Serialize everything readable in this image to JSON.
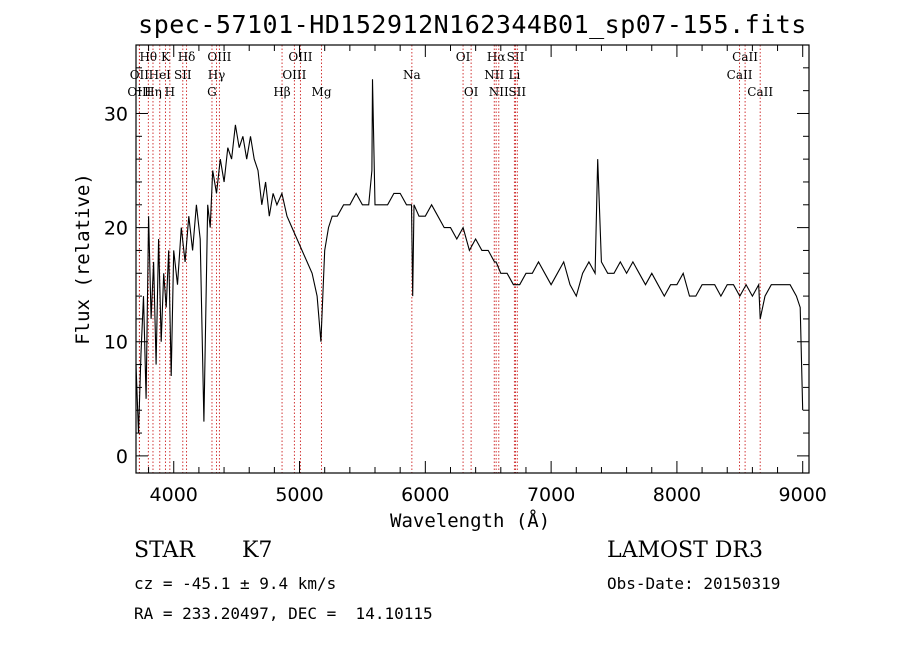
{
  "title": "spec-57101-HD152912N162344B01_sp07-155.fits",
  "info": {
    "class_label": "STAR",
    "subclass_label": "K7",
    "survey_label": "LAMOST DR3",
    "cz_text": "cz = -45.1 ± 9.4 km/s",
    "obs_date_text": "Obs-Date: 20150319",
    "radec_text": "RA = 233.20497, DEC =  14.10115"
  },
  "colors": {
    "spectrum": "#000000",
    "line_markers": "#cc2222",
    "axes": "#000000"
  },
  "chart_data": {
    "type": "line",
    "title": "spec-57101-HD152912N162344B01_sp07-155.fits",
    "xlabel": "Wavelength (Å)",
    "ylabel": "Flux (relative)",
    "xlim": [
      3700,
      9050
    ],
    "ylim": [
      -1.5,
      36
    ],
    "x_ticks": [
      4000,
      5000,
      6000,
      7000,
      8000,
      9000
    ],
    "y_ticks": [
      0,
      10,
      20,
      30
    ],
    "spectrum": {
      "x": [
        3700,
        3720,
        3740,
        3760,
        3780,
        3800,
        3820,
        3840,
        3860,
        3880,
        3900,
        3920,
        3940,
        3960,
        3980,
        4000,
        4030,
        4060,
        4090,
        4120,
        4150,
        4180,
        4210,
        4240,
        4270,
        4290,
        4310,
        4340,
        4370,
        4400,
        4430,
        4460,
        4490,
        4520,
        4550,
        4580,
        4610,
        4640,
        4670,
        4700,
        4730,
        4760,
        4790,
        4820,
        4860,
        4900,
        4940,
        4980,
        5020,
        5060,
        5100,
        5140,
        5170,
        5185,
        5200,
        5230,
        5260,
        5300,
        5350,
        5400,
        5450,
        5500,
        5550,
        5575,
        5580,
        5600,
        5650,
        5700,
        5750,
        5800,
        5850,
        5890,
        5900,
        5910,
        5950,
        6000,
        6050,
        6100,
        6150,
        6200,
        6250,
        6300,
        6350,
        6400,
        6450,
        6500,
        6550,
        6563,
        6600,
        6650,
        6700,
        6750,
        6800,
        6850,
        6900,
        6950,
        7000,
        7050,
        7100,
        7150,
        7200,
        7250,
        7300,
        7350,
        7370,
        7400,
        7450,
        7500,
        7550,
        7600,
        7650,
        7700,
        7750,
        7800,
        7850,
        7900,
        7950,
        8000,
        8050,
        8100,
        8150,
        8200,
        8250,
        8300,
        8350,
        8400,
        8450,
        8500,
        8550,
        8600,
        8650,
        8662,
        8700,
        8750,
        8800,
        8850,
        8900,
        8950,
        8980,
        9000
      ],
      "y": [
        8,
        2,
        9,
        14,
        5,
        21,
        12,
        17,
        8,
        19,
        10,
        16,
        13,
        18,
        7,
        18,
        15,
        20,
        17,
        21,
        18,
        22,
        19,
        3,
        22,
        20,
        25,
        23,
        26,
        24,
        27,
        26,
        29,
        27,
        28,
        26,
        28,
        26,
        25,
        22,
        24,
        21,
        23,
        22,
        23,
        21,
        20,
        19,
        18,
        17,
        16,
        14,
        10,
        14,
        18,
        20,
        21,
        21,
        22,
        22,
        23,
        22,
        22,
        25,
        33,
        22,
        22,
        22,
        23,
        23,
        22,
        22,
        14,
        22,
        21,
        21,
        22,
        21,
        20,
        20,
        19,
        20,
        18,
        19,
        18,
        18,
        17,
        17,
        16,
        16,
        15,
        15,
        16,
        16,
        17,
        16,
        15,
        16,
        17,
        15,
        14,
        16,
        17,
        16,
        26,
        17,
        16,
        16,
        17,
        16,
        17,
        16,
        15,
        16,
        15,
        14,
        15,
        15,
        16,
        14,
        14,
        15,
        15,
        15,
        14,
        15,
        15,
        14,
        15,
        14,
        15,
        12,
        14,
        15,
        15,
        15,
        15,
        14,
        13,
        4
      ]
    },
    "line_markers": [
      {
        "label": "Hθ",
        "x": 3798,
        "row": 0
      },
      {
        "label": "OII",
        "x": 3727,
        "row": 1
      },
      {
        "label": "OIII",
        "x": 3727,
        "row": 2
      },
      {
        "label": "K",
        "x": 3934,
        "row": 0
      },
      {
        "label": "HeI",
        "x": 3889,
        "row": 1
      },
      {
        "label": "Hη",
        "x": 3835,
        "row": 2
      },
      {
        "label": "H",
        "x": 3969,
        "row": 2
      },
      {
        "label": "SII",
        "x": 4072,
        "row": 1
      },
      {
        "label": "Hδ",
        "x": 4102,
        "row": 0
      },
      {
        "label": "OIII",
        "x": 4363,
        "row": 0
      },
      {
        "label": "Hγ",
        "x": 4340,
        "row": 1
      },
      {
        "label": "G",
        "x": 4304,
        "row": 2
      },
      {
        "label": "OIII",
        "x": 5007,
        "row": 0
      },
      {
        "label": "OIII",
        "x": 4959,
        "row": 1
      },
      {
        "label": "Hβ",
        "x": 4861,
        "row": 2
      },
      {
        "label": "Mg",
        "x": 5175,
        "row": 2
      },
      {
        "label": "Na",
        "x": 5893,
        "row": 1
      },
      {
        "label": "OI",
        "x": 6300,
        "row": 0
      },
      {
        "label": "OI",
        "x": 6364,
        "row": 2
      },
      {
        "label": "Hα",
        "x": 6563,
        "row": 0
      },
      {
        "label": "NII",
        "x": 6548,
        "row": 1
      },
      {
        "label": "NII",
        "x": 6584,
        "row": 2
      },
      {
        "label": "SII",
        "x": 6717,
        "row": 0
      },
      {
        "label": "Li",
        "x": 6708,
        "row": 1
      },
      {
        "label": "SII",
        "x": 6731,
        "row": 2
      },
      {
        "label": "CaII",
        "x": 8542,
        "row": 0
      },
      {
        "label": "CaII",
        "x": 8498,
        "row": 1
      },
      {
        "label": "CaII",
        "x": 8662,
        "row": 2
      }
    ]
  }
}
